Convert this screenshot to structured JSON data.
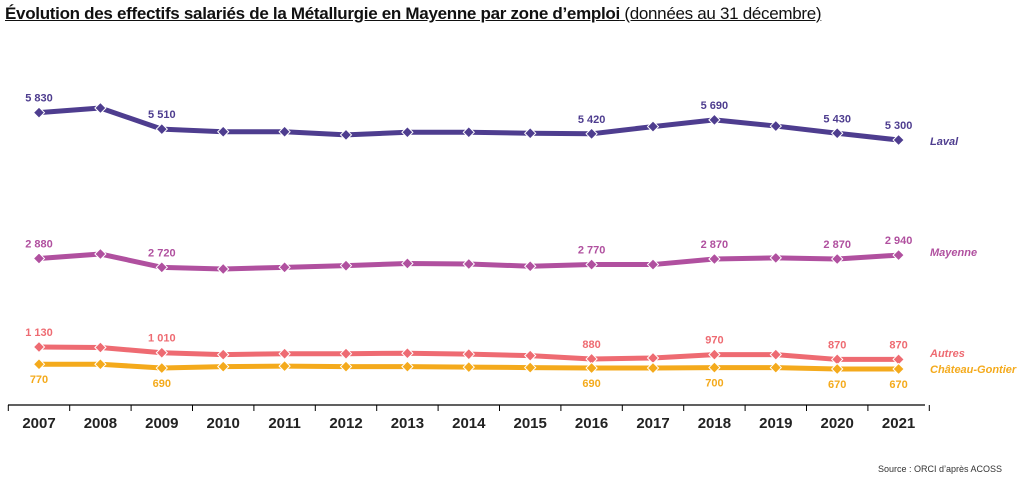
{
  "title_main": "Évolution des effectifs salariés de la Métallurgie en Mayenne par zone d’emploi",
  "title_sub": "(données au 31 décembre)",
  "source": "Source : ORCI d’après ACOSS",
  "chart_data": {
    "type": "line",
    "title": "Évolution des effectifs salariés de la Métallurgie en Mayenne par zone d’emploi (données au 31 décembre)",
    "x": [
      "2007",
      "2008",
      "2009",
      "2010",
      "2011",
      "2012",
      "2013",
      "2014",
      "2015",
      "2016",
      "2017",
      "2018",
      "2019",
      "2020",
      "2021"
    ],
    "series": [
      {
        "name": "Laval",
        "color": "#4e3d8f",
        "values": [
          5830,
          5920,
          5510,
          5460,
          5460,
          5400,
          5450,
          5450,
          5430,
          5420,
          5560,
          5690,
          5570,
          5430,
          5300
        ],
        "labels": [
          "5 830",
          null,
          "5 510",
          null,
          null,
          null,
          null,
          null,
          null,
          "5 420",
          null,
          "5 690",
          null,
          "5 430",
          "5 300"
        ],
        "label_pos": "above"
      },
      {
        "name": "Mayenne",
        "color": "#b0509f",
        "values": [
          2880,
          2960,
          2720,
          2690,
          2720,
          2750,
          2790,
          2780,
          2740,
          2770,
          2770,
          2870,
          2890,
          2870,
          2940
        ],
        "labels": [
          "2 880",
          null,
          "2 720",
          null,
          null,
          null,
          null,
          null,
          null,
          "2 770",
          null,
          "2 870",
          null,
          "2 870",
          "2 940"
        ],
        "label_pos": "above"
      },
      {
        "name": "Autres",
        "color": "#ee6b72",
        "values": [
          1130,
          1120,
          1010,
          970,
          990,
          990,
          1000,
          980,
          950,
          880,
          900,
          970,
          970,
          870,
          870
        ],
        "labels": [
          "1 130",
          null,
          "1 010",
          null,
          null,
          null,
          null,
          null,
          null,
          "880",
          null,
          "970",
          null,
          "870",
          "870"
        ],
        "label_pos": "above"
      },
      {
        "name": "Château-Gontier",
        "color": "#f4aa1c",
        "values": [
          770,
          770,
          690,
          720,
          730,
          720,
          720,
          710,
          700,
          690,
          690,
          700,
          700,
          670,
          670
        ],
        "labels": [
          "770",
          null,
          "690",
          null,
          null,
          null,
          null,
          null,
          null,
          "690",
          null,
          "700",
          null,
          "670",
          "670"
        ],
        "label_pos": "below"
      }
    ],
    "grid": false,
    "legend": "right, at line ends"
  }
}
